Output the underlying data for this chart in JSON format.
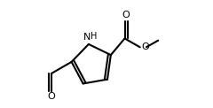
{
  "bg_color": "#ffffff",
  "line_color": "#000000",
  "line_width": 1.5,
  "figsize": [
    2.4,
    1.22
  ],
  "dpi": 100,
  "NH_label": "NH",
  "O_label": "O",
  "font_size": 7
}
